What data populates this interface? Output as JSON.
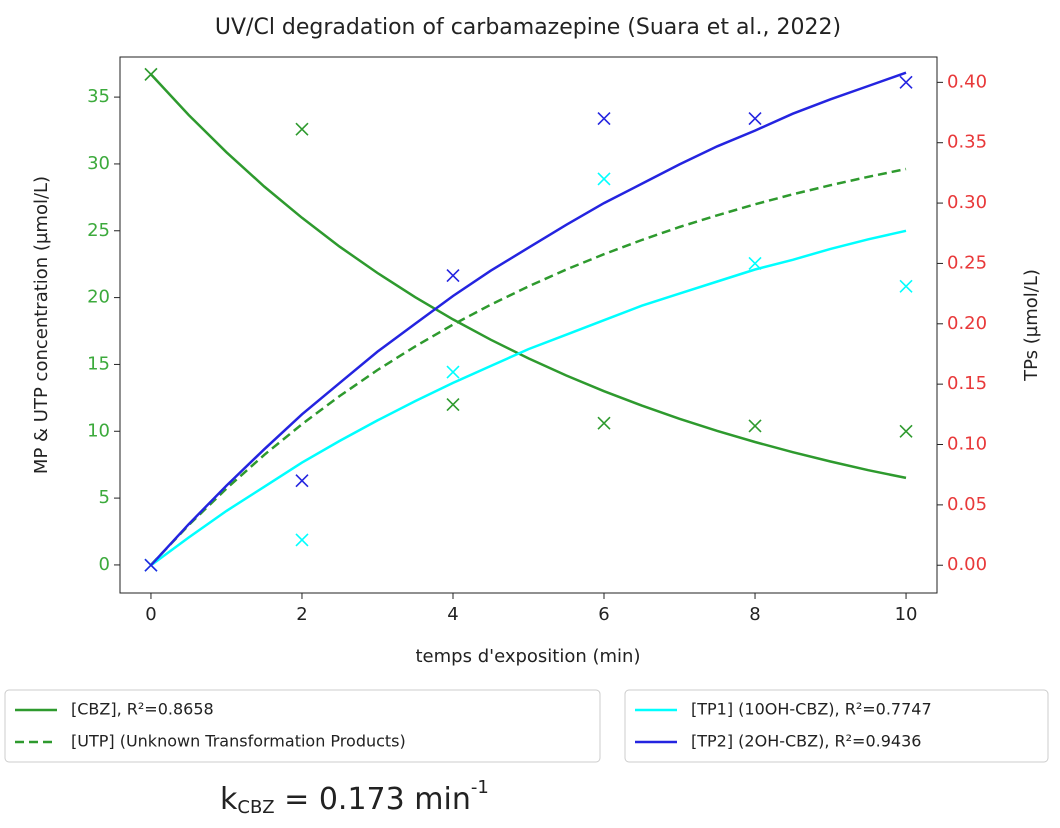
{
  "chart_data": {
    "type": "line",
    "title": "UV/Cl degradation of carbamazepine (Suara et al., 2022)",
    "xlabel": "temps d'exposition (min)",
    "ylabel": "MP & UTP concentration (µmol/L)",
    "y2label": "TPs (µmol/L)",
    "ylabel_color": "#3caa3c",
    "y2label_color": "#e8393a",
    "xlim": [
      -0.41,
      10.41
    ],
    "xticks": [
      0,
      2,
      4,
      6,
      8,
      10
    ],
    "ylim": [
      -2.1,
      38.0
    ],
    "yticks": [
      0,
      5,
      10,
      15,
      20,
      25,
      30,
      35
    ],
    "y2lim": [
      -0.023,
      0.421
    ],
    "y2ticks": [
      {
        "value": 0,
        "label": "0.00"
      },
      {
        "value": 0.05,
        "label": "0.05"
      },
      {
        "value": 0.1,
        "label": "0.10"
      },
      {
        "value": 0.15,
        "label": "0.15"
      },
      {
        "value": 0.2,
        "label": "0.20"
      },
      {
        "value": 0.25,
        "label": "0.25"
      },
      {
        "value": 0.3,
        "label": "0.30"
      },
      {
        "value": 0.35,
        "label": "0.35"
      },
      {
        "value": 0.4,
        "label": "0.40"
      }
    ],
    "x": [
      0,
      0.5,
      1,
      1.5,
      2,
      2.5,
      3,
      3.5,
      4,
      4.5,
      5,
      5.5,
      6,
      6.5,
      7,
      7.5,
      8,
      8.5,
      9,
      9.5,
      10
    ],
    "series": [
      {
        "name": "[CBZ], R²=0.8658",
        "color": "#2e9a2e",
        "dash": false,
        "values": [
          36.7,
          33.66,
          30.87,
          28.31,
          25.97,
          23.81,
          21.84,
          20.03,
          18.37,
          16.85,
          15.45,
          14.17,
          13.0,
          11.92,
          10.93,
          10.03,
          9.2,
          8.43,
          7.74,
          7.09,
          6.51
        ]
      },
      {
        "name": "[UTP] (Unknown Transformation Products)",
        "color": "#2e9a2e",
        "dash": true,
        "values": [
          0,
          2.98,
          5.72,
          8.23,
          10.53,
          12.64,
          14.58,
          16.35,
          17.98,
          19.47,
          20.84,
          22.1,
          23.25,
          24.31,
          25.28,
          26.16,
          26.98,
          27.73,
          28.41,
          29.04,
          29.62
        ]
      },
      {
        "name": "[TP1] (10OH-CBZ), R²=0.7747",
        "color": "#00ffff",
        "dash": false,
        "axis": "y2",
        "values": [
          0,
          0.023,
          0.045,
          0.065,
          0.085,
          0.103,
          0.12,
          0.136,
          0.151,
          0.165,
          0.179,
          0.191,
          0.203,
          0.215,
          0.225,
          0.235,
          0.245,
          0.253,
          0.262,
          0.27,
          0.277
        ]
      },
      {
        "name": "[TP2] (2OH-CBZ), R²=0.9436",
        "color": "#2424e0",
        "dash": false,
        "axis": "y2",
        "values": [
          0,
          0.034,
          0.066,
          0.096,
          0.125,
          0.151,
          0.177,
          0.2,
          0.223,
          0.244,
          0.263,
          0.282,
          0.3,
          0.316,
          0.332,
          0.347,
          0.36,
          0.374,
          0.386,
          0.397,
          0.408
        ]
      }
    ],
    "points_x": [
      0,
      2,
      4,
      6,
      8,
      10
    ],
    "points": [
      {
        "color": "#2e9a2e",
        "values": [
          36.7,
          32.6,
          12.0,
          10.6,
          10.4,
          10.0
        ]
      },
      {
        "color": "#00ffff",
        "axis": "y2",
        "values": [
          0,
          0.021,
          0.16,
          0.32,
          0.25,
          0.231
        ]
      },
      {
        "color": "#2424e0",
        "axis": "y2",
        "values": [
          0,
          0.07,
          0.24,
          0.37,
          0.37,
          0.4
        ]
      }
    ],
    "annotation": {
      "base": "k",
      "sub": "CBZ",
      "mid": " = 0.173 min",
      "sup": "-1"
    }
  }
}
